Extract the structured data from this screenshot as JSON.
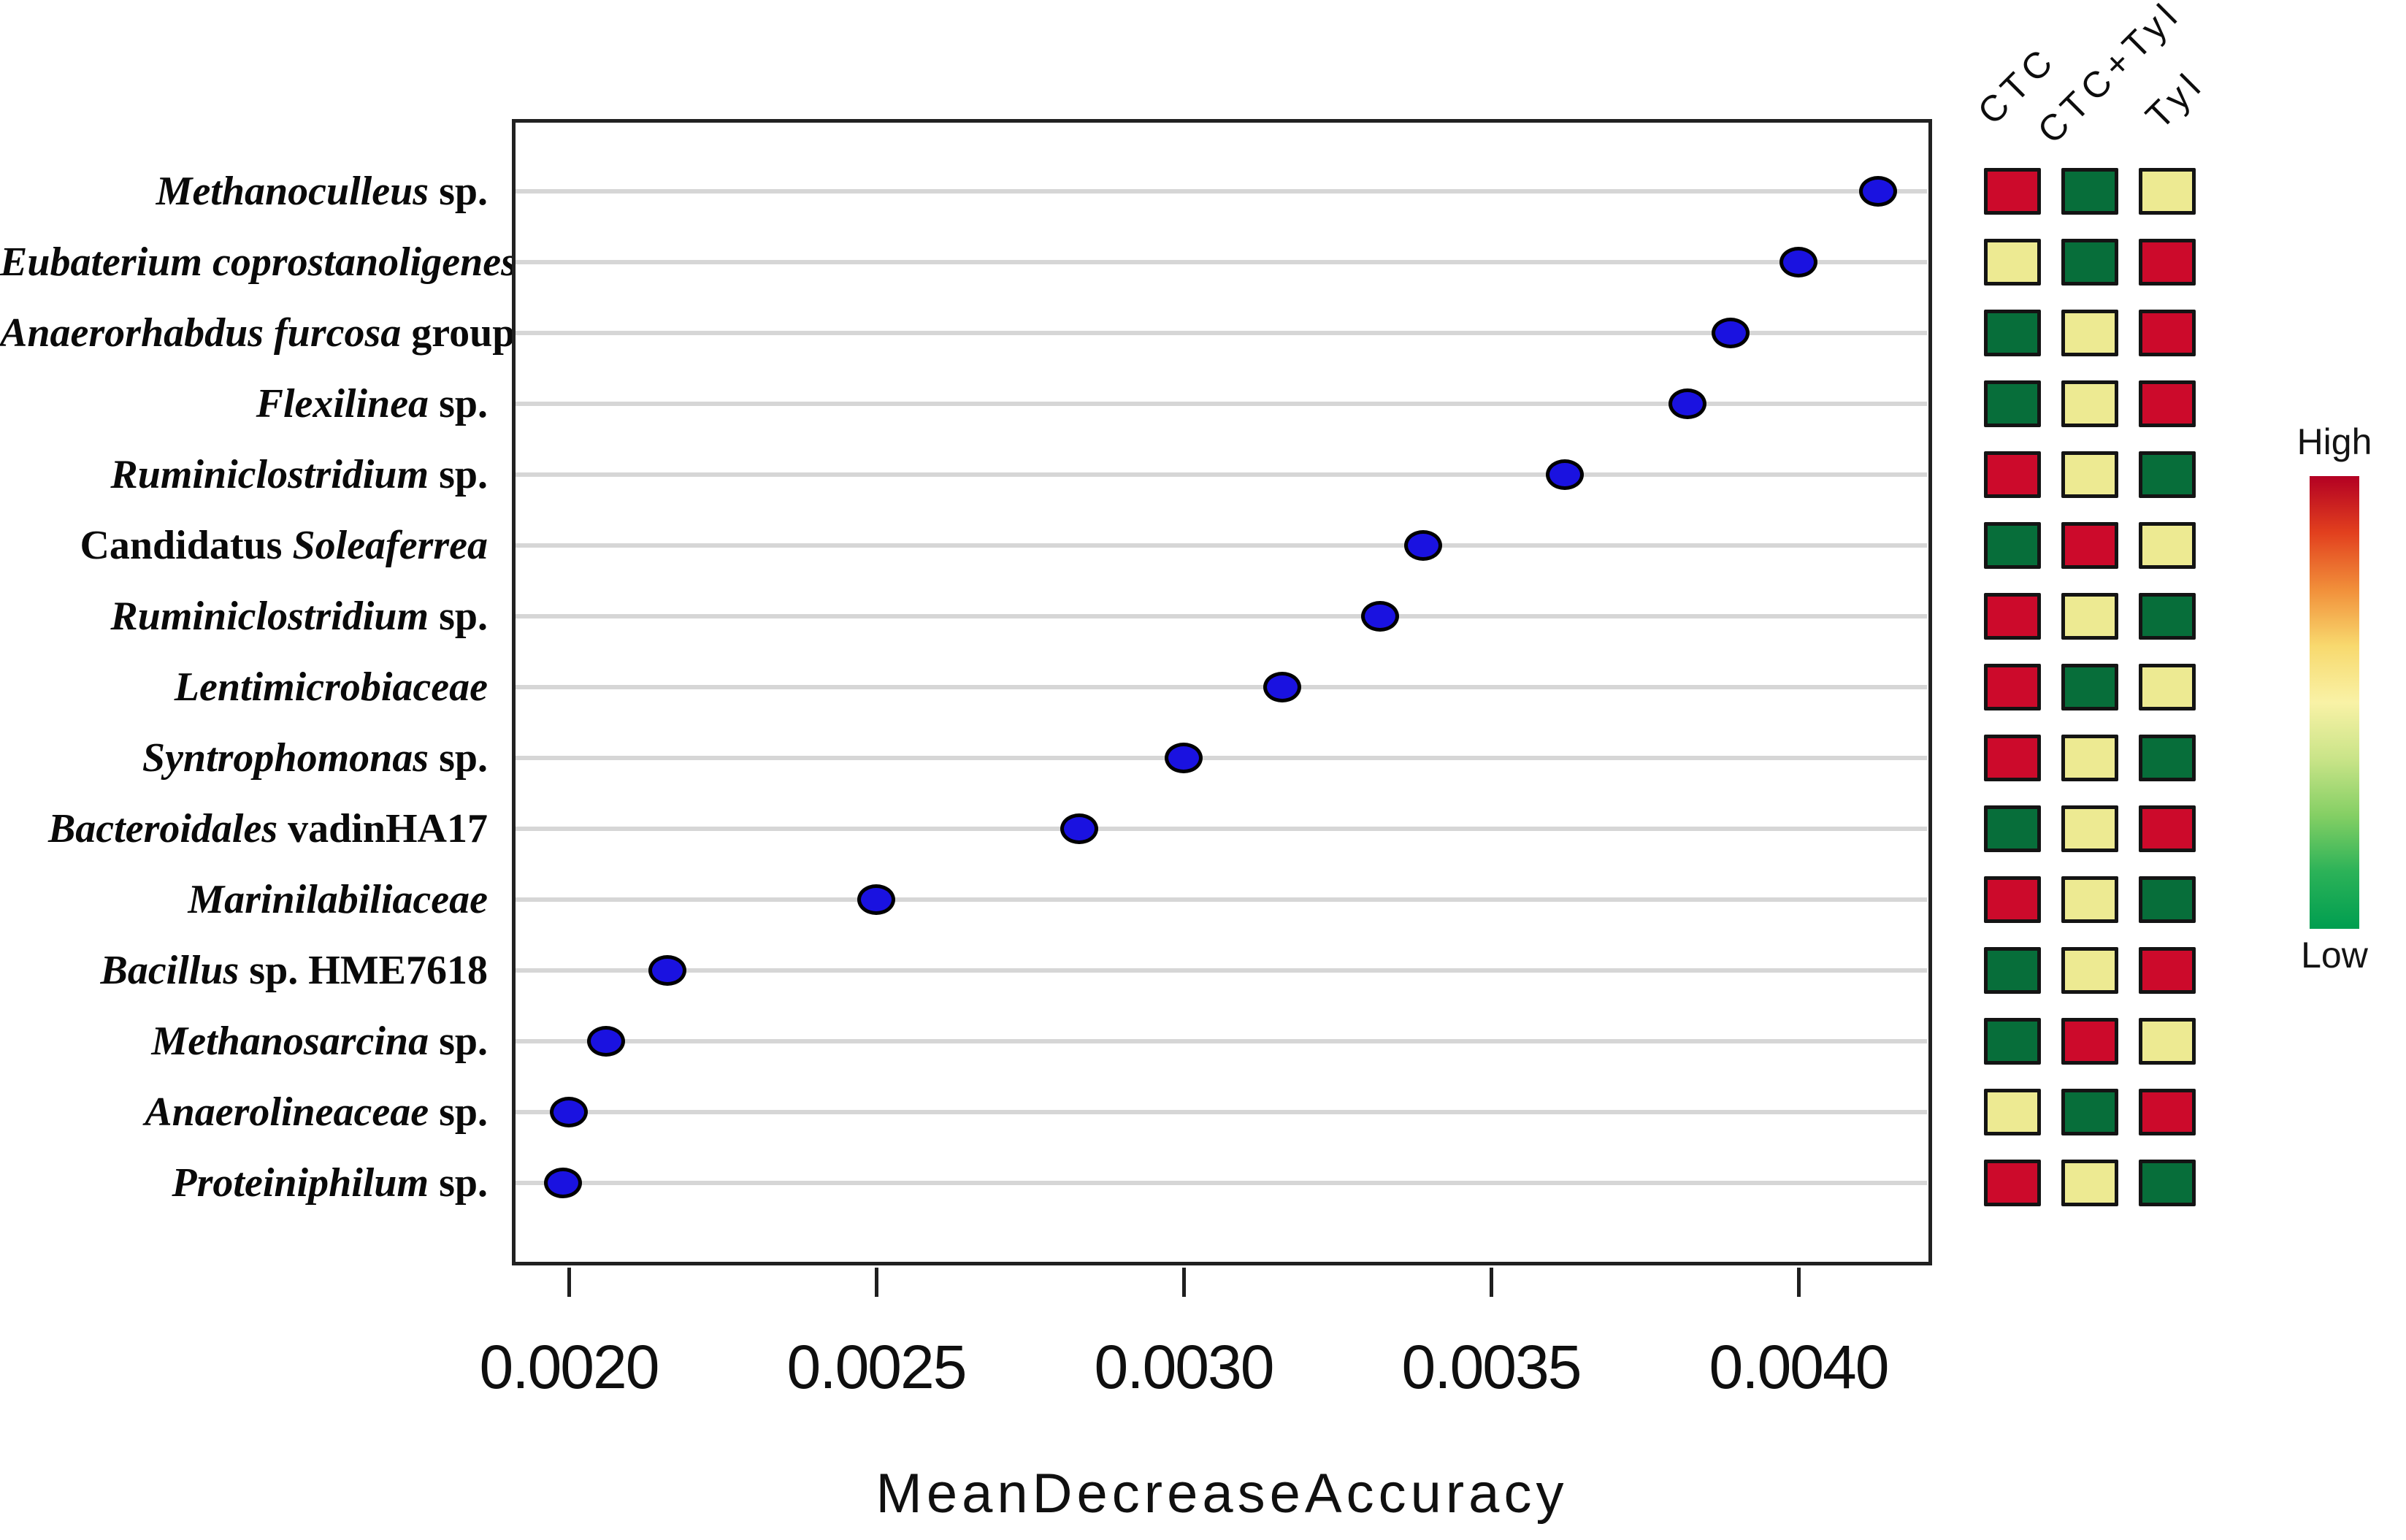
{
  "figure": {
    "x_axis": {
      "title": "MeanDecreaseAccuracy",
      "ticks": [
        "0.0020",
        "0.0025",
        "0.0030",
        "0.0035",
        "0.0040"
      ],
      "tick_values": [
        0.002,
        0.0025,
        0.003,
        0.0035,
        0.004
      ]
    },
    "legend": {
      "high_label": "High",
      "low_label": "Low"
    },
    "heatmap": {
      "columns": [
        "CTC",
        "CTC+Tyl",
        "Tyl"
      ]
    },
    "palette": {
      "high": "#cc0a2b",
      "mid": "#edea92",
      "low": "#076e3a",
      "dot_fill": "#1a12e0",
      "dot_border": "#000000",
      "gridline": "#d6d6d6",
      "frame": "#212121",
      "gradient_top_to_bottom": [
        "#b30023",
        "#e2401e",
        "#f18f3a",
        "#f8d96e",
        "#f9f2a6",
        "#c9e488",
        "#84cf64",
        "#2bb258",
        "#009e50"
      ]
    },
    "rows": [
      {
        "label_text": "Methanoculleus sp.",
        "label_parts": [
          {
            "text": "Methanoculleus",
            "italic": true
          },
          {
            "text": " sp.",
            "italic": false
          }
        ],
        "value": 0.00413,
        "cells": [
          "high",
          "low",
          "mid"
        ]
      },
      {
        "label_text": "Eubaterium coprostanoligenes",
        "label_parts": [
          {
            "text": "Eubaterium coprostanoligenes",
            "italic": true
          }
        ],
        "value": 0.004,
        "cells": [
          "mid",
          "low",
          "high"
        ]
      },
      {
        "label_text": "Anaerorhabdus furcosa group",
        "label_parts": [
          {
            "text": "Anaerorhabdus furcosa",
            "italic": true
          },
          {
            "text": " group",
            "italic": false
          }
        ],
        "value": 0.00389,
        "cells": [
          "low",
          "mid",
          "high"
        ]
      },
      {
        "label_text": "Flexilinea sp.",
        "label_parts": [
          {
            "text": "Flexilinea",
            "italic": true
          },
          {
            "text": " sp.",
            "italic": false
          }
        ],
        "value": 0.00382,
        "cells": [
          "low",
          "mid",
          "high"
        ]
      },
      {
        "label_text": "Ruminiclostridium sp.",
        "label_parts": [
          {
            "text": "Ruminiclostridium",
            "italic": true
          },
          {
            "text": " sp.",
            "italic": false
          }
        ],
        "value": 0.00362,
        "cells": [
          "high",
          "mid",
          "low"
        ]
      },
      {
        "label_text": "Candidatus Soleaferrea",
        "label_parts": [
          {
            "text": "Candidatus ",
            "italic": false
          },
          {
            "text": "Soleaferrea",
            "italic": true
          }
        ],
        "value": 0.00339,
        "cells": [
          "low",
          "high",
          "mid"
        ]
      },
      {
        "label_text": "Ruminiclostridium sp.",
        "label_parts": [
          {
            "text": "Ruminiclostridium",
            "italic": true
          },
          {
            "text": " sp.",
            "italic": false
          }
        ],
        "value": 0.00332,
        "cells": [
          "high",
          "mid",
          "low"
        ]
      },
      {
        "label_text": "Lentimicrobiaceae",
        "label_parts": [
          {
            "text": "Lentimicrobiaceae",
            "italic": true
          }
        ],
        "value": 0.00316,
        "cells": [
          "high",
          "low",
          "mid"
        ]
      },
      {
        "label_text": "Syntrophomonas sp.",
        "label_parts": [
          {
            "text": "Syntrophomonas",
            "italic": true
          },
          {
            "text": " sp.",
            "italic": false
          }
        ],
        "value": 0.003,
        "cells": [
          "high",
          "mid",
          "low"
        ]
      },
      {
        "label_text": "Bacteroidales vadinHA17",
        "label_parts": [
          {
            "text": "Bacteroidales",
            "italic": true
          },
          {
            "text": " vadinHA17",
            "italic": false
          }
        ],
        "value": 0.00283,
        "cells": [
          "low",
          "mid",
          "high"
        ]
      },
      {
        "label_text": "Marinilabiliaceae",
        "label_parts": [
          {
            "text": "Marinilabiliaceae",
            "italic": true
          }
        ],
        "value": 0.0025,
        "cells": [
          "high",
          "mid",
          "low"
        ]
      },
      {
        "label_text": "Bacillus sp. HME7618",
        "label_parts": [
          {
            "text": "Bacillus",
            "italic": true
          },
          {
            "text": " sp. HME7618",
            "italic": false
          }
        ],
        "value": 0.00216,
        "cells": [
          "low",
          "mid",
          "high"
        ]
      },
      {
        "label_text": "Methanosarcina sp.",
        "label_parts": [
          {
            "text": "Methanosarcina",
            "italic": true
          },
          {
            "text": " sp.",
            "italic": false
          }
        ],
        "value": 0.00206,
        "cells": [
          "low",
          "high",
          "mid"
        ]
      },
      {
        "label_text": "Anaerolineaceae sp.",
        "label_parts": [
          {
            "text": "Anaerolineaceae",
            "italic": true
          },
          {
            "text": " sp.",
            "italic": false
          }
        ],
        "value": 0.002,
        "cells": [
          "mid",
          "low",
          "high"
        ]
      },
      {
        "label_text": "Proteiniphilum sp.",
        "label_parts": [
          {
            "text": "Proteiniphilum",
            "italic": true
          },
          {
            "text": " sp.",
            "italic": false
          }
        ],
        "value": 0.00199,
        "cells": [
          "high",
          "mid",
          "low"
        ]
      }
    ]
  },
  "chart_data": [
    {
      "type": "scatter",
      "title": "",
      "xlabel": "MeanDecreaseAccuracy",
      "ylabel": "",
      "xlim": [
        0.00191,
        0.00422
      ],
      "x_ticks": [
        0.002,
        0.0025,
        0.003,
        0.0035,
        0.004
      ],
      "grid": "horizontal",
      "marker": "blue-filled ellipse, black outline",
      "categories": [
        "Methanoculleus sp.",
        "Eubaterium coprostanoligenes",
        "Anaerorhabdus furcosa group",
        "Flexilinea sp.",
        "Ruminiclostridium sp.",
        "Candidatus Soleaferrea",
        "Ruminiclostridium sp.",
        "Lentimicrobiaceae",
        "Syntrophomonas sp.",
        "Bacteroidales vadinHA17",
        "Marinilabiliaceae",
        "Bacillus sp. HME7618",
        "Methanosarcina sp.",
        "Anaerolineaceae sp.",
        "Proteiniphilum sp."
      ],
      "values": [
        0.00413,
        0.004,
        0.00389,
        0.00382,
        0.00362,
        0.00339,
        0.00332,
        0.00316,
        0.003,
        0.00283,
        0.0025,
        0.00216,
        0.00206,
        0.002,
        0.00199
      ]
    },
    {
      "type": "heatmap",
      "columns": [
        "CTC",
        "CTC+Tyl",
        "Tyl"
      ],
      "rows": [
        "Methanoculleus sp.",
        "Eubaterium coprostanoligenes",
        "Anaerorhabdus furcosa group",
        "Flexilinea sp.",
        "Ruminiclostridium sp.",
        "Candidatus Soleaferrea",
        "Ruminiclostridium sp.",
        "Lentimicrobiaceae",
        "Syntrophomonas sp.",
        "Bacteroidales vadinHA17",
        "Marinilabiliaceae",
        "Bacillus sp. HME7618",
        "Methanosarcina sp.",
        "Anaerolineaceae sp.",
        "Proteiniphilum sp."
      ],
      "levels": {
        "high": "red #cc0a2b",
        "mid": "pale-yellow #edea92",
        "low": "green #076e3a"
      },
      "matrix": [
        [
          "high",
          "low",
          "mid"
        ],
        [
          "mid",
          "low",
          "high"
        ],
        [
          "low",
          "mid",
          "high"
        ],
        [
          "low",
          "mid",
          "high"
        ],
        [
          "high",
          "mid",
          "low"
        ],
        [
          "low",
          "high",
          "mid"
        ],
        [
          "high",
          "mid",
          "low"
        ],
        [
          "high",
          "low",
          "mid"
        ],
        [
          "high",
          "mid",
          "low"
        ],
        [
          "low",
          "mid",
          "high"
        ],
        [
          "high",
          "mid",
          "low"
        ],
        [
          "low",
          "mid",
          "high"
        ],
        [
          "low",
          "high",
          "mid"
        ],
        [
          "mid",
          "low",
          "high"
        ],
        [
          "high",
          "mid",
          "low"
        ]
      ],
      "legend": {
        "top": "High",
        "bottom": "Low",
        "legend_position": "right"
      }
    }
  ]
}
